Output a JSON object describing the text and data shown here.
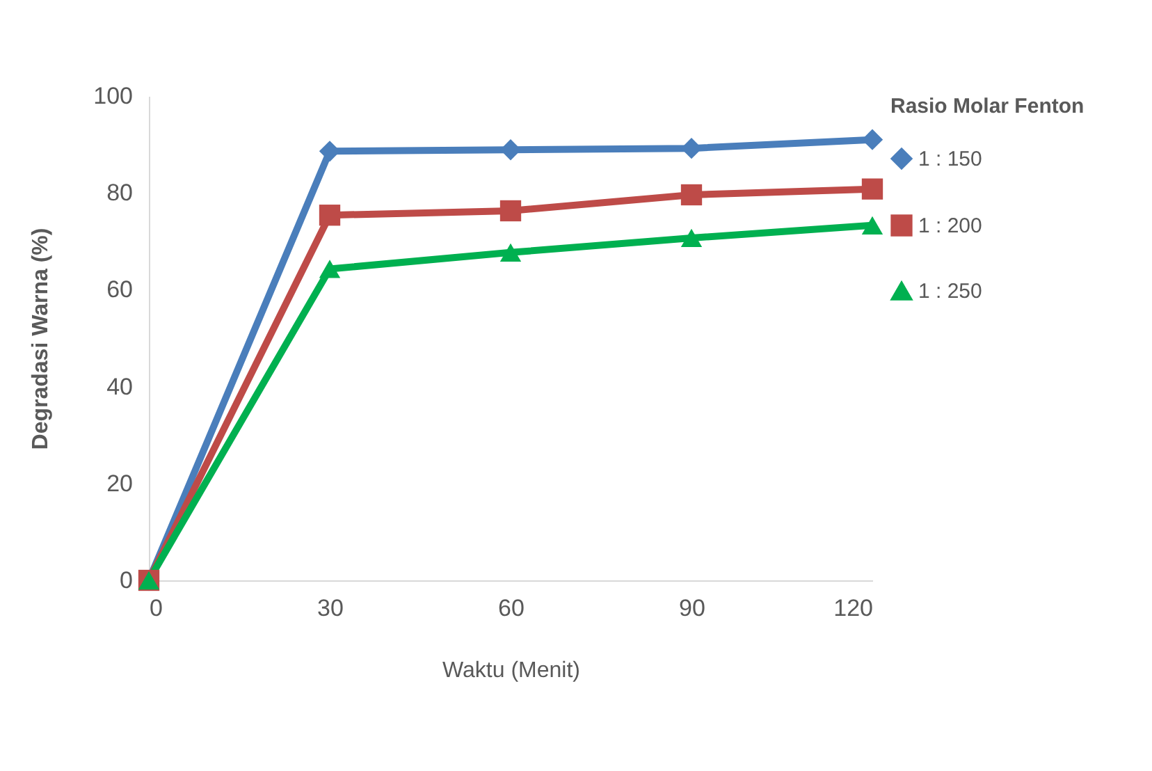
{
  "chart_data": {
    "type": "line",
    "xlabel": "Waktu (Menit)",
    "ylabel": "Degradasi Warna (%)",
    "legend_title": "Rasio Molar Fenton",
    "x": [
      0,
      30,
      60,
      90,
      120
    ],
    "xlim": [
      0,
      120
    ],
    "xticks": [
      0,
      30,
      60,
      90,
      120
    ],
    "ylim": [
      0,
      100
    ],
    "yticks": [
      0,
      20,
      40,
      60,
      80,
      100
    ],
    "grid": false,
    "legend": "right",
    "series": [
      {
        "name": "1 : 150",
        "color": "#4a7ebb",
        "marker": "diamond",
        "values": [
          0,
          88.6,
          88.9,
          89.2,
          91.0
        ]
      },
      {
        "name": "1 : 200",
        "color": "#be4b48",
        "marker": "square",
        "values": [
          0,
          75.4,
          76.3,
          79.6,
          80.8
        ]
      },
      {
        "name": "1 : 250",
        "color": "#00b050",
        "marker": "triangle",
        "values": [
          0,
          64.3,
          67.7,
          70.7,
          73.3
        ]
      }
    ]
  }
}
